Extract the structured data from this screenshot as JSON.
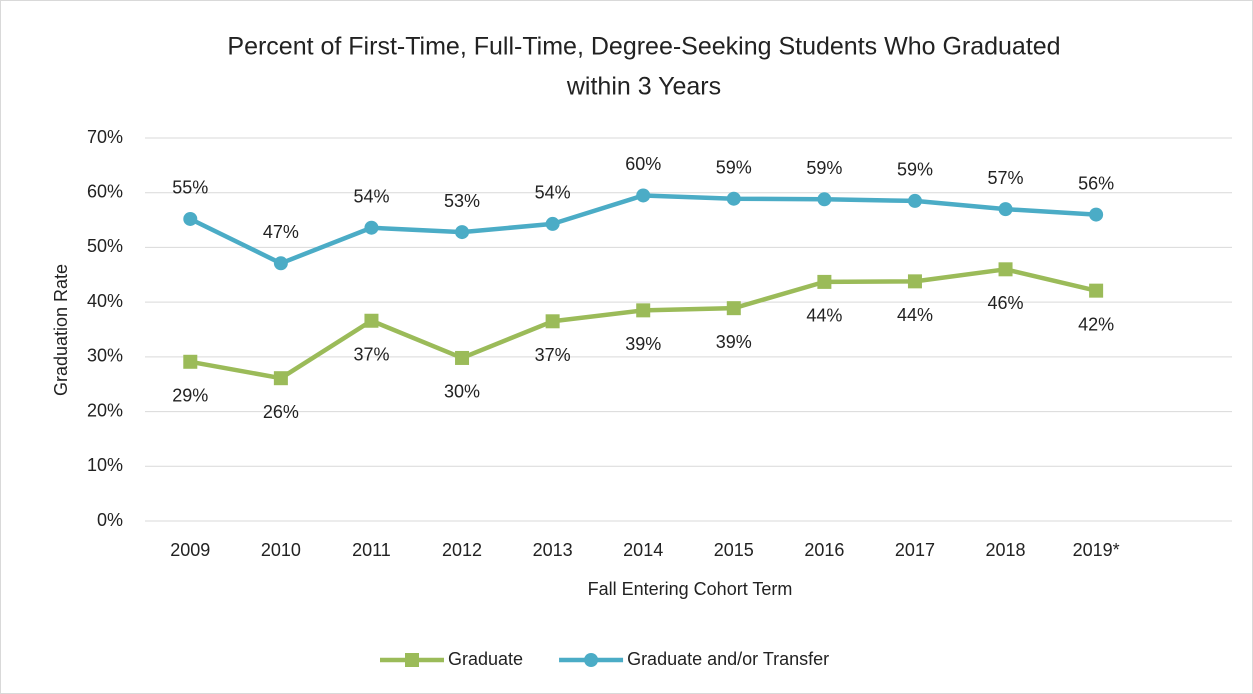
{
  "chart_data": {
    "type": "line",
    "title": [
      "Percent of First-Time, Full-Time, Degree-Seeking Students Who Graduated",
      "within 3 Years"
    ],
    "x_label": "Fall Entering Cohort Term",
    "y_label": "Graduation Rate",
    "categories": [
      "2009",
      "2010",
      "2011",
      "2012",
      "2013",
      "2014",
      "2015",
      "2016",
      "2017",
      "2018",
      "2019*",
      null
    ],
    "series": [
      {
        "name": "Graduate",
        "color": "#9bbb59",
        "marker": "square",
        "label_position": "below",
        "values": [
          29.1,
          26.1,
          36.6,
          29.8,
          36.5,
          38.5,
          38.9,
          43.7,
          43.8,
          46.0,
          42.1,
          null
        ],
        "value_labels": [
          "29%",
          "26%",
          "37%",
          "30%",
          "37%",
          "39%",
          "39%",
          "44%",
          "44%",
          "46%",
          "42%",
          null
        ]
      },
      {
        "name": "Graduate and/or Transfer",
        "color": "#4bacc6",
        "marker": "circle",
        "label_position": "above",
        "values": [
          55.2,
          47.1,
          53.6,
          52.8,
          54.3,
          59.5,
          58.9,
          58.8,
          58.5,
          57.0,
          56.0,
          null
        ],
        "value_labels": [
          "55%",
          "47%",
          "54%",
          "53%",
          "54%",
          "60%",
          "59%",
          "59%",
          "59%",
          "57%",
          "56%",
          null
        ]
      }
    ],
    "ylim": [
      0,
      70
    ],
    "yticks": [
      {
        "value": 0,
        "label": "0%"
      },
      {
        "value": 10,
        "label": "10%"
      },
      {
        "value": 20,
        "label": "20%"
      },
      {
        "value": 30,
        "label": "30%"
      },
      {
        "value": 40,
        "label": "40%"
      },
      {
        "value": 50,
        "label": "50%"
      },
      {
        "value": 60,
        "label": "60%"
      },
      {
        "value": 70,
        "label": "70%"
      }
    ],
    "grid": true,
    "legend": "bottom"
  }
}
